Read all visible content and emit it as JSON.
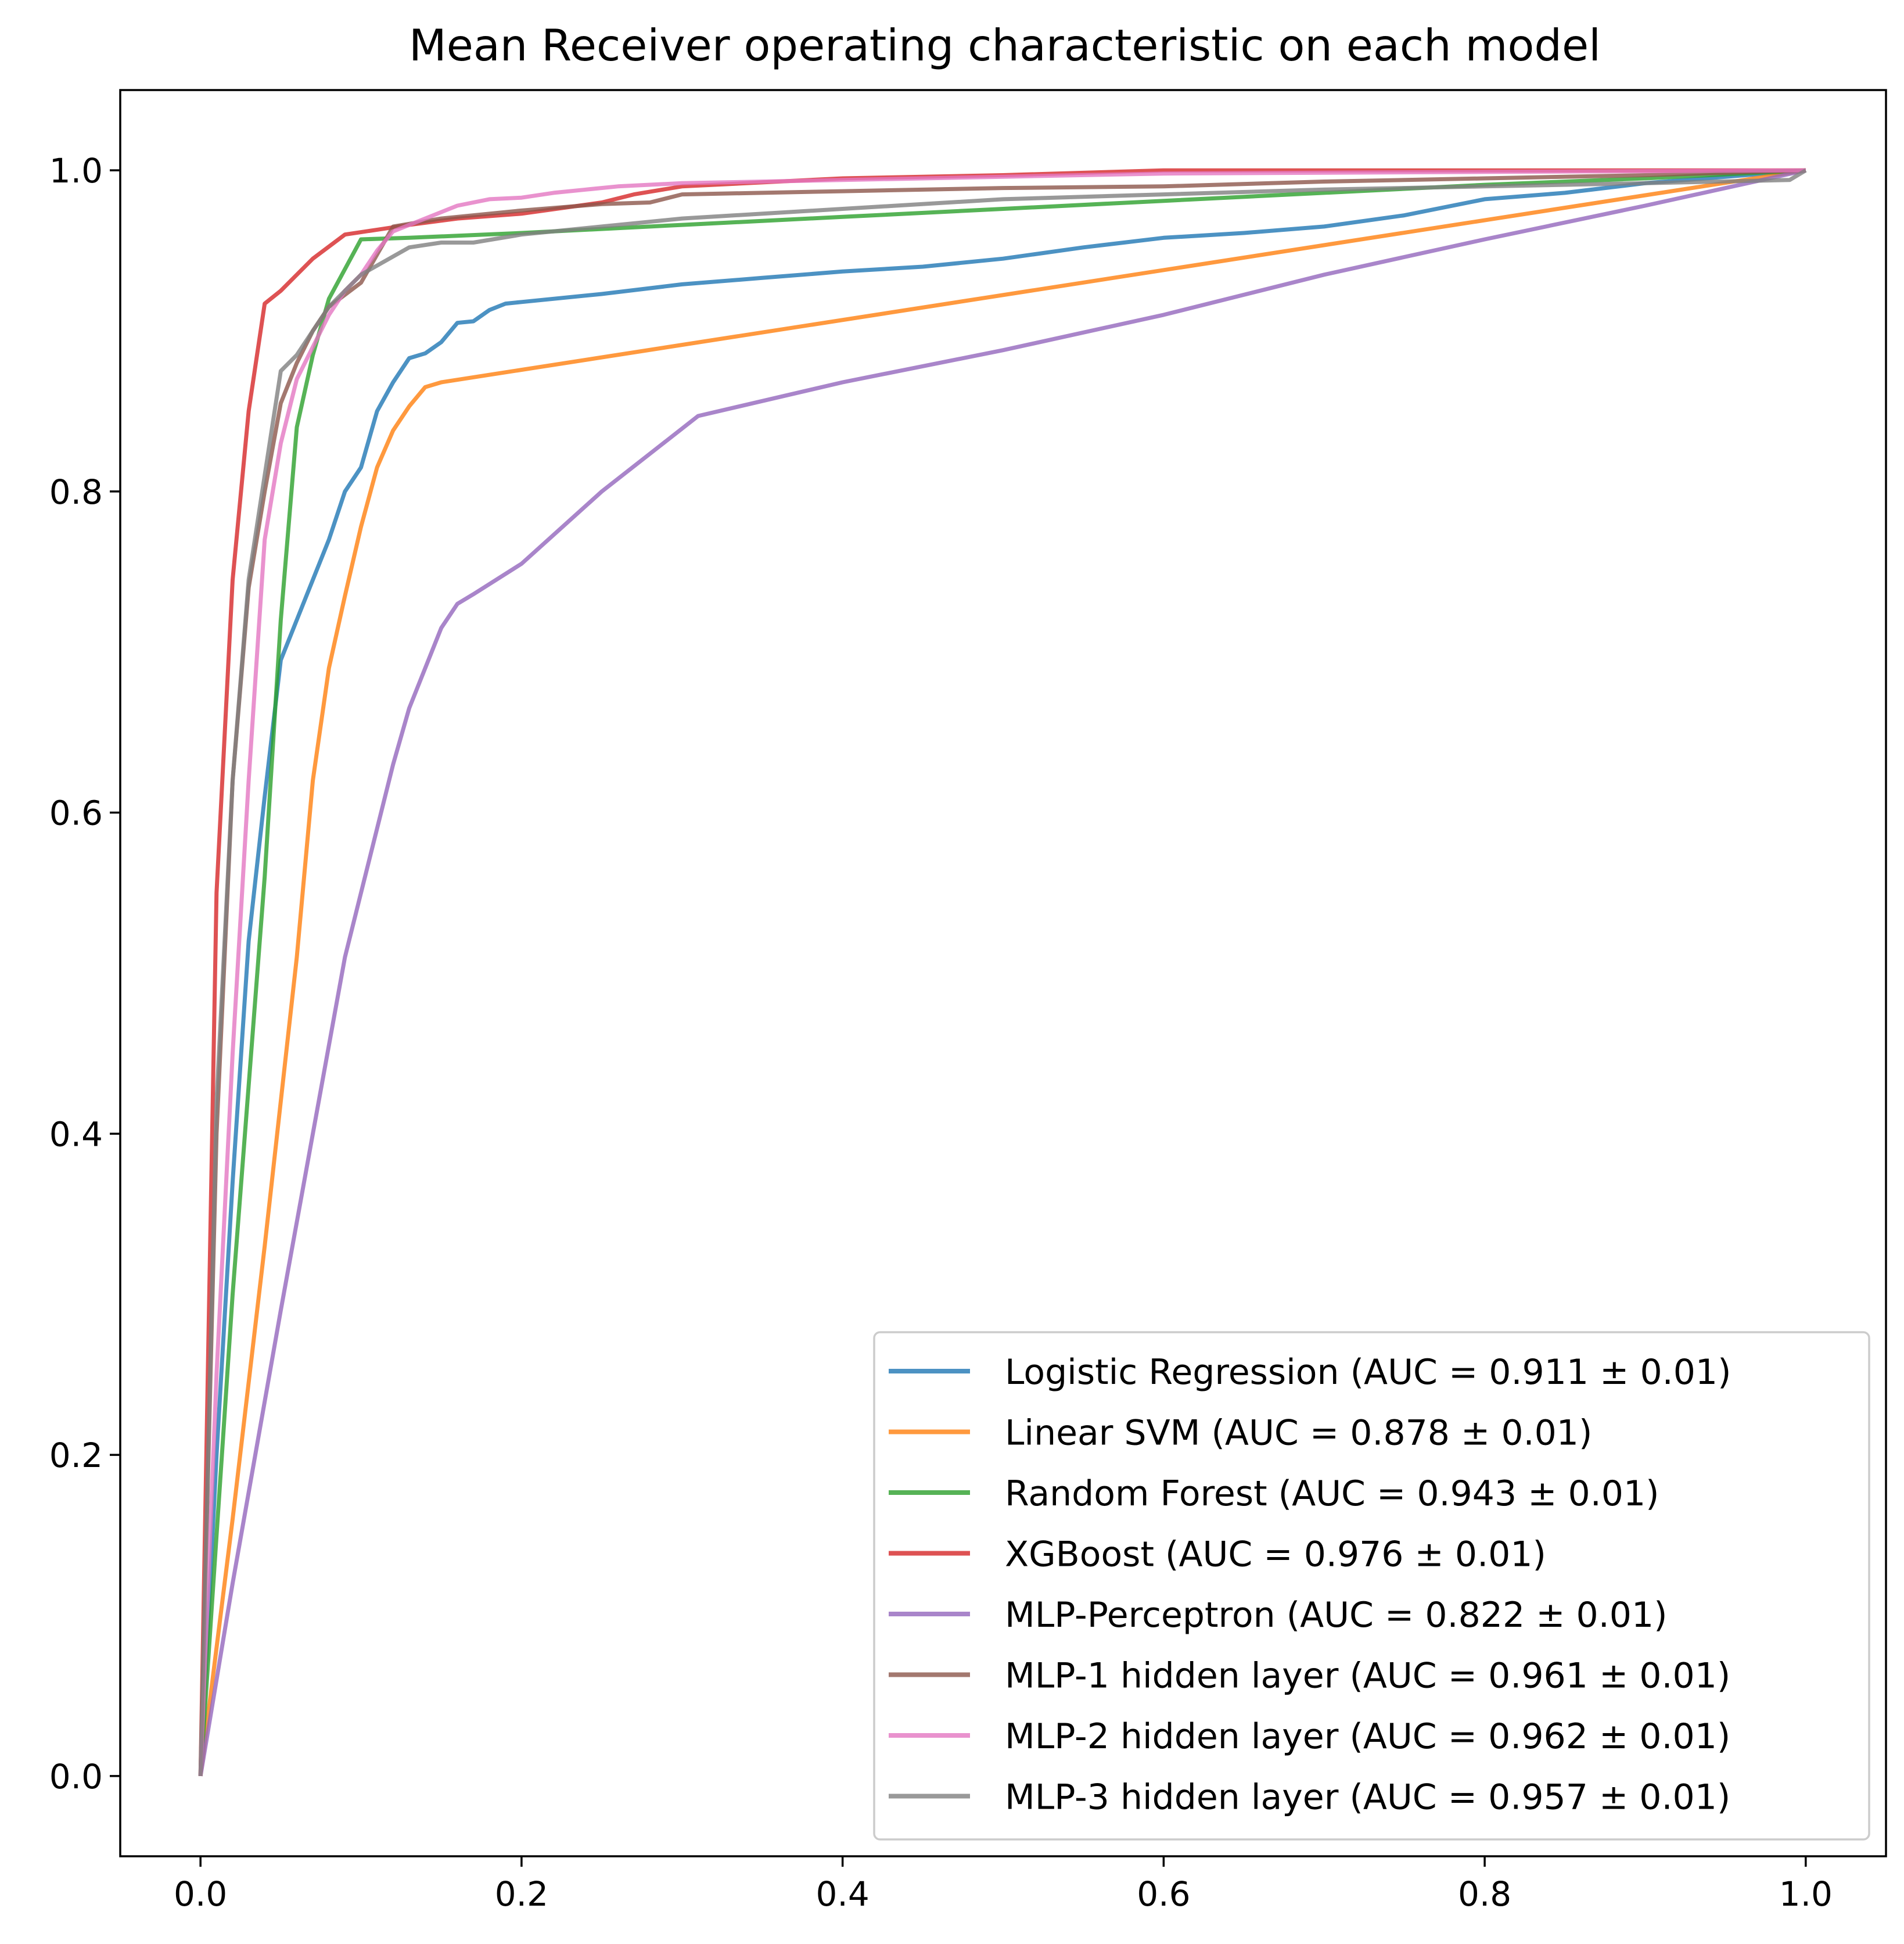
{
  "chart_data": {
    "type": "line",
    "title": "Mean Receiver operating characteristic on each model",
    "xlabel": "",
    "ylabel": "",
    "xlim": [
      -0.05,
      1.05
    ],
    "ylim": [
      -0.05,
      1.05
    ],
    "xticks": [
      0.0,
      0.2,
      0.4,
      0.6,
      0.8,
      1.0
    ],
    "xtick_labels": [
      "0.0",
      "0.2",
      "0.4",
      "0.6",
      "0.8",
      "1.0"
    ],
    "yticks": [
      0.0,
      0.2,
      0.4,
      0.6,
      0.8,
      1.0
    ],
    "ytick_labels": [
      "0.0",
      "0.2",
      "0.4",
      "0.6",
      "0.8",
      "1.0"
    ],
    "grid": false,
    "legend_position": "lower-right",
    "series": [
      {
        "name": "Logistic Regression (AUC = 0.911 ± 0.01)",
        "color": "#1f77b4",
        "x": [
          0,
          0.01,
          0.02,
          0.03,
          0.04,
          0.05,
          0.06,
          0.07,
          0.08,
          0.09,
          0.1,
          0.11,
          0.12,
          0.13,
          0.14,
          0.15,
          0.16,
          0.17,
          0.18,
          0.19,
          0.2,
          0.25,
          0.3,
          0.35,
          0.4,
          0.45,
          0.5,
          0.55,
          0.6,
          0.65,
          0.7,
          0.75,
          0.8,
          0.85,
          0.9,
          1.0
        ],
        "y": [
          0,
          0.2,
          0.37,
          0.52,
          0.61,
          0.695,
          0.72,
          0.745,
          0.77,
          0.8,
          0.815,
          0.85,
          0.868,
          0.883,
          0.886,
          0.893,
          0.905,
          0.906,
          0.913,
          0.917,
          0.918,
          0.923,
          0.929,
          0.933,
          0.937,
          0.94,
          0.945,
          0.952,
          0.958,
          0.961,
          0.965,
          0.972,
          0.982,
          0.986,
          0.992,
          1.0
        ]
      },
      {
        "name": "Linear SVM (AUC = 0.878 ± 0.01)",
        "color": "#ff7f0e",
        "x": [
          0,
          0.02,
          0.04,
          0.06,
          0.07,
          0.08,
          0.09,
          0.1,
          0.11,
          0.12,
          0.13,
          0.14,
          0.15,
          1.0
        ],
        "y": [
          0,
          0.16,
          0.33,
          0.51,
          0.62,
          0.69,
          0.735,
          0.778,
          0.815,
          0.838,
          0.853,
          0.865,
          0.868,
          1.0
        ]
      },
      {
        "name": "Random Forest (AUC = 0.943 ± 0.01)",
        "color": "#2ca02c",
        "x": [
          0,
          0.02,
          0.04,
          0.05,
          0.06,
          0.07,
          0.08,
          0.1,
          0.13,
          0.2,
          0.3,
          0.4,
          0.5,
          0.6,
          0.7,
          0.8,
          0.9,
          1.0
        ],
        "y": [
          0,
          0.3,
          0.56,
          0.72,
          0.84,
          0.885,
          0.92,
          0.957,
          0.958,
          0.961,
          0.966,
          0.971,
          0.976,
          0.981,
          0.986,
          0.991,
          0.995,
          1.0
        ]
      },
      {
        "name": "XGBoost (AUC = 0.976 ± 0.01)",
        "color": "#d62728",
        "x": [
          0,
          0.01,
          0.02,
          0.03,
          0.04,
          0.05,
          0.07,
          0.09,
          0.11,
          0.13,
          0.16,
          0.2,
          0.25,
          0.27,
          0.3,
          0.4,
          0.5,
          0.6,
          0.8,
          1.0
        ],
        "y": [
          0,
          0.55,
          0.745,
          0.85,
          0.917,
          0.925,
          0.945,
          0.96,
          0.963,
          0.966,
          0.97,
          0.973,
          0.98,
          0.985,
          0.99,
          0.995,
          0.997,
          1.0,
          1.0,
          1.0
        ]
      },
      {
        "name": "MLP-Perceptron (AUC = 0.822 ± 0.01)",
        "color": "#9467bd",
        "x": [
          0,
          0.02,
          0.05,
          0.07,
          0.09,
          0.1,
          0.12,
          0.13,
          0.15,
          0.16,
          0.17,
          0.2,
          0.25,
          0.31,
          0.4,
          0.5,
          0.6,
          0.7,
          0.8,
          0.9,
          1.0
        ],
        "y": [
          0,
          0.12,
          0.29,
          0.4,
          0.51,
          0.55,
          0.63,
          0.665,
          0.715,
          0.73,
          0.736,
          0.755,
          0.8,
          0.847,
          0.868,
          0.888,
          0.91,
          0.935,
          0.957,
          0.978,
          1.0
        ]
      },
      {
        "name": "MLP-1 hidden layer (AUC = 0.961 ± 0.01)",
        "color": "#8c564b",
        "x": [
          0,
          0.01,
          0.02,
          0.03,
          0.04,
          0.05,
          0.06,
          0.07,
          0.08,
          0.1,
          0.12,
          0.15,
          0.2,
          0.25,
          0.28,
          0.3,
          0.4,
          0.5,
          0.6,
          0.7,
          0.8,
          0.9,
          1.0
        ],
        "y": [
          0,
          0.4,
          0.62,
          0.74,
          0.8,
          0.855,
          0.88,
          0.9,
          0.915,
          0.93,
          0.965,
          0.97,
          0.975,
          0.979,
          0.98,
          0.985,
          0.987,
          0.989,
          0.99,
          0.993,
          0.995,
          0.997,
          1.0
        ]
      },
      {
        "name": "MLP-2 hidden layer (AUC = 0.962 ± 0.01)",
        "color": "#e377c2",
        "x": [
          0,
          0.01,
          0.02,
          0.03,
          0.04,
          0.05,
          0.06,
          0.07,
          0.08,
          0.09,
          0.1,
          0.11,
          0.12,
          0.14,
          0.16,
          0.18,
          0.2,
          0.22,
          0.24,
          0.26,
          0.3,
          0.4,
          0.5,
          0.6,
          0.8,
          1.0
        ],
        "y": [
          0,
          0.25,
          0.45,
          0.62,
          0.77,
          0.83,
          0.87,
          0.89,
          0.91,
          0.925,
          0.935,
          0.95,
          0.962,
          0.97,
          0.978,
          0.982,
          0.983,
          0.986,
          0.988,
          0.99,
          0.992,
          0.994,
          0.996,
          0.998,
          0.999,
          1.0
        ]
      },
      {
        "name": "MLP-3 hidden layer (AUC = 0.957 ± 0.01)",
        "color": "#7f7f7f",
        "x": [
          0,
          0.01,
          0.02,
          0.03,
          0.04,
          0.05,
          0.06,
          0.07,
          0.08,
          0.1,
          0.13,
          0.15,
          0.17,
          0.2,
          0.25,
          0.3,
          0.4,
          0.5,
          0.6,
          0.7,
          0.8,
          0.9,
          0.99,
          1.0
        ],
        "y": [
          0,
          0.42,
          0.62,
          0.745,
          0.81,
          0.875,
          0.885,
          0.9,
          0.915,
          0.935,
          0.952,
          0.955,
          0.955,
          0.96,
          0.965,
          0.97,
          0.976,
          0.982,
          0.985,
          0.988,
          0.99,
          0.992,
          0.994,
          1.0
        ]
      }
    ]
  }
}
